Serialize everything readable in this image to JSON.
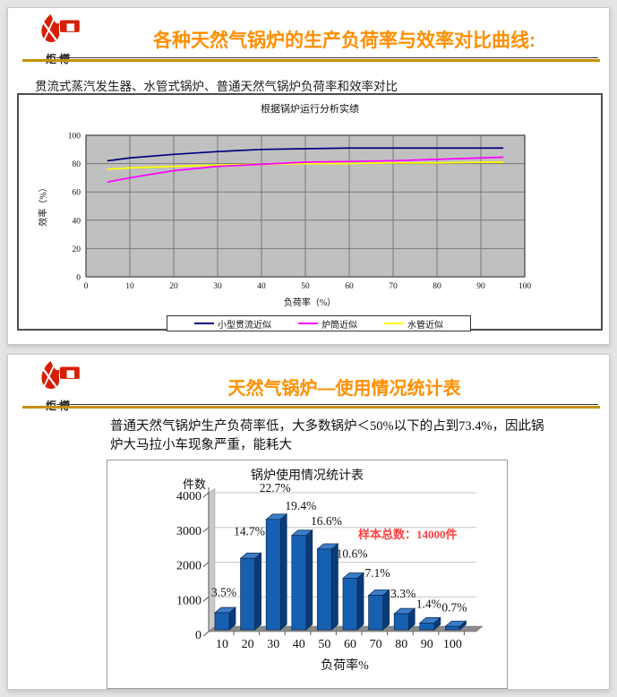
{
  "page": {
    "bg_color": "#e4e4e6",
    "accent_gold": "#c79100",
    "title_color": "#ff8f00"
  },
  "logo": {
    "name": "炬樽",
    "color": "#d81e06"
  },
  "slide1": {
    "title": "各种天然气锅炉的生产负荷率与效率对比曲线:",
    "subtitle": "贯流式蒸汽发生器、水管式锅炉、普通天然气锅炉负荷率和效率对比"
  },
  "slide2": {
    "title": "天然气锅炉—使用情况统计表",
    "body_line1": "普通天然气锅炉生产负荷率低，大多数锅炉＜50%以下的占到73.4%，因此锅",
    "body_line2": "炉大马拉小车现象严重，能耗大"
  },
  "chart_data": [
    {
      "type": "line",
      "title": "根据锅炉运行分析实绩",
      "xlabel": "负荷率（%）",
      "ylabel": "效率（%）",
      "xlim": [
        0,
        100
      ],
      "ylim": [
        0,
        100
      ],
      "x_ticks": [
        0,
        10,
        20,
        30,
        40,
        50,
        60,
        70,
        80,
        90,
        100
      ],
      "y_ticks": [
        0,
        20,
        40,
        60,
        80,
        100
      ],
      "plot_bg": "#c0c0c0",
      "grid_color": "#787878",
      "grid": "on",
      "legend_position": "bottom",
      "x": [
        5,
        10,
        20,
        30,
        40,
        50,
        60,
        70,
        80,
        90,
        95
      ],
      "series": [
        {
          "name": "小型贯流近似",
          "color": "#000080",
          "values": [
            82,
            84,
            86.5,
            88.5,
            90,
            90.5,
            91,
            91,
            91,
            91,
            91
          ]
        },
        {
          "name": "炉筒近似",
          "color": "#ff00ff",
          "values": [
            67,
            70,
            75,
            78,
            79.5,
            81,
            81.5,
            82,
            83,
            84,
            84.5
          ]
        },
        {
          "name": "水管近似",
          "color": "#ffff00",
          "values": [
            76,
            77,
            78,
            79,
            79.5,
            80,
            80,
            80.5,
            80.5,
            81,
            81
          ]
        }
      ]
    },
    {
      "type": "bar",
      "title": "锅炉使用情况统计表",
      "xlabel": "负荷率%",
      "ylabel": "件数",
      "ylim": [
        0,
        4000
      ],
      "y_ticks": [
        0,
        1000,
        2000,
        3000,
        4000
      ],
      "categories": [
        "10",
        "20",
        "30",
        "40",
        "50",
        "60",
        "70",
        "80",
        "90",
        "100"
      ],
      "values": [
        490,
        2058,
        3178,
        2716,
        2324,
        1484,
        994,
        462,
        196,
        98
      ],
      "labels": [
        "3.5%",
        "14.7%",
        "22.7%",
        "19.4%",
        "16.6%",
        "10.6%",
        "7.1%",
        "3.3%",
        "1.4%",
        "0.7%"
      ],
      "annotation": "样本总数：14000件",
      "annotation_color": "#ff4040",
      "bar_colors": {
        "front": "#1660b2",
        "side": "#0a3a78",
        "top": "#3c7cc8",
        "outline": "#07294f"
      },
      "grid_color": "#c8c8c8",
      "floor_color": "#8a8a8a"
    }
  ]
}
